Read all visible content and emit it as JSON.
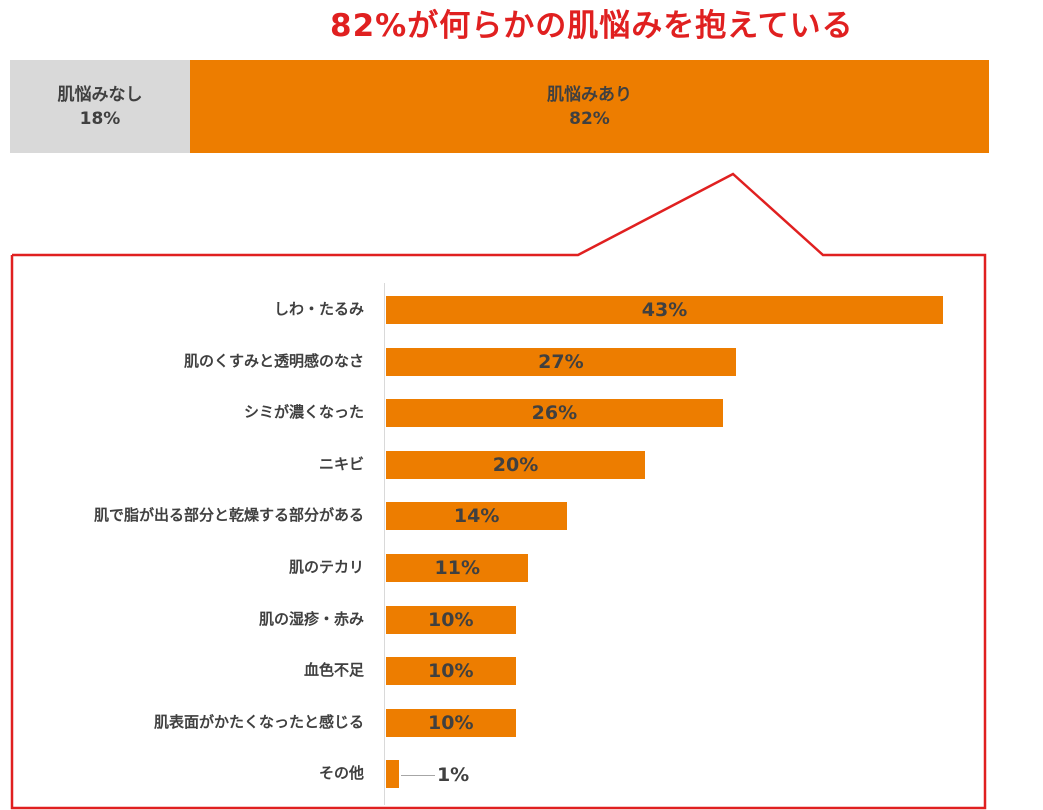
{
  "headline": "82%が何らかの肌悩みを抱えている",
  "overview": {
    "none": {
      "label": "肌悩みなし",
      "value": "18%"
    },
    "yes": {
      "label": "肌悩みあり",
      "value": "82%"
    }
  },
  "colors": {
    "accent": "#ed7d00",
    "none": "#d9d9d9",
    "callout": "#e02020",
    "text": "#404040"
  },
  "chart_data": {
    "type": "bar",
    "orientation": "horizontal",
    "title": "",
    "xlabel": "",
    "ylabel": "",
    "xlim": [
      0,
      43
    ],
    "categories": [
      "しわ・たるみ",
      "肌のくすみと透明感のなさ",
      "シミが濃くなった",
      "ニキビ",
      "肌で脂が出る部分と乾燥する部分がある",
      "肌のテカリ",
      "肌の湿疹・赤み",
      "血色不足",
      "肌表面がかたくなったと感じる",
      "その他"
    ],
    "values": [
      43,
      27,
      26,
      20,
      14,
      11,
      10,
      10,
      10,
      1
    ],
    "value_labels": [
      "43%",
      "27%",
      "26%",
      "20%",
      "14%",
      "11%",
      "10%",
      "10%",
      "10%",
      "1%"
    ]
  }
}
